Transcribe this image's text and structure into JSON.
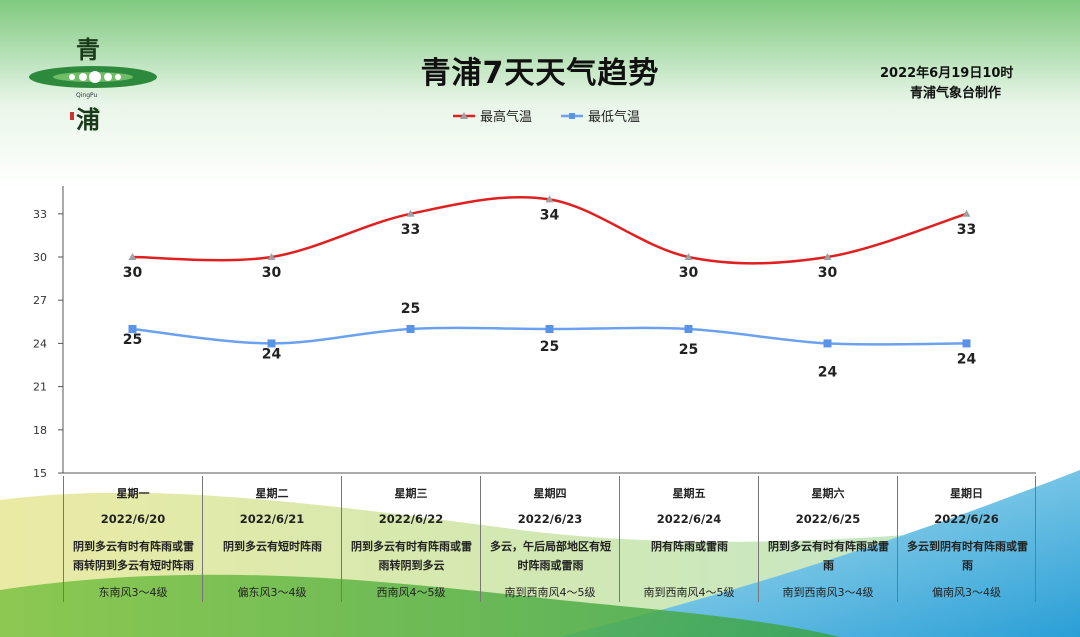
{
  "header": {
    "title": "青浦7天天气趋势",
    "issued_time": "2022年6月19日10时",
    "issuer": "青浦气象台制作"
  },
  "logo": {
    "char_top": "青",
    "char_bottom": "浦",
    "latin": "QingPu"
  },
  "colors": {
    "high": "#e02020",
    "low": "#6aa2f0",
    "marker_high": "#a0a0a0",
    "axis": "#555555"
  },
  "chart_data": {
    "type": "line",
    "categories": [
      "星期一",
      "星期二",
      "星期三",
      "星期四",
      "星期五",
      "星期六",
      "星期日"
    ],
    "series": [
      {
        "name": "最高气温",
        "values": [
          30,
          30,
          33,
          34,
          30,
          30,
          33
        ]
      },
      {
        "name": "最低气温",
        "values": [
          25,
          24,
          25,
          25,
          25,
          24,
          24
        ]
      }
    ],
    "y_ticks": [
      15,
      18,
      21,
      24,
      27,
      30,
      33
    ],
    "ylim": [
      15,
      35
    ],
    "legend_position": "top-center",
    "grid": false
  },
  "forecast": [
    {
      "day": "星期一",
      "date": "2022/6/20",
      "weather": "阴到多云有时有阵雨或雷雨转阴到多云有短时阵雨",
      "wind": "东南风3～4级"
    },
    {
      "day": "星期二",
      "date": "2022/6/21",
      "weather": "阴到多云有短时阵雨",
      "wind": "偏东风3～4级"
    },
    {
      "day": "星期三",
      "date": "2022/6/22",
      "weather": "阴到多云有时有阵雨或雷雨转阴到多云",
      "wind": "西南风4～5级"
    },
    {
      "day": "星期四",
      "date": "2022/6/23",
      "weather": "多云，午后局部地区有短时阵雨或雷雨",
      "wind": "南到西南风4～5级"
    },
    {
      "day": "星期五",
      "date": "2022/6/24",
      "weather": "阴有阵雨或雷雨",
      "wind": "南到西南风4～5级"
    },
    {
      "day": "星期六",
      "date": "2022/6/25",
      "weather": "阴到多云有时有阵雨或雷雨",
      "wind": "南到西南风3～4级"
    },
    {
      "day": "星期日",
      "date": "2022/6/26",
      "weather": "多云到阴有时有阵雨或雷雨",
      "wind": "偏南风3～4级"
    }
  ]
}
